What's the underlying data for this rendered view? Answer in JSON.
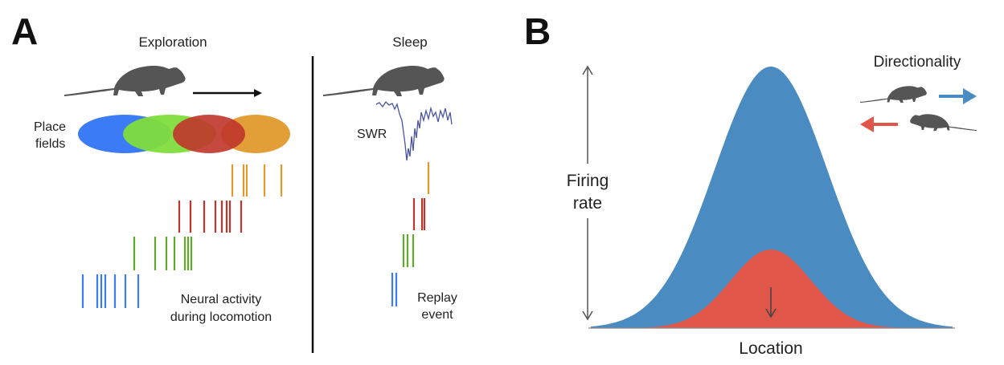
{
  "panel_a": {
    "label": "A",
    "exploration_title": "Exploration",
    "sleep_title": "Sleep",
    "place_fields_label": [
      "Place",
      "fields"
    ],
    "swr_label": "SWR",
    "neural_activity_label": [
      "Neural activity",
      "during locomotion"
    ],
    "replay_label": [
      "Replay",
      "event"
    ],
    "place_field_colors": [
      "#3b7bf5",
      "#7fdd3c",
      "#c0352b",
      "#e09a2d"
    ]
  },
  "panel_b": {
    "label": "B",
    "y_label": [
      "Firing",
      "rate"
    ],
    "x_label": "Location",
    "legend_title": "Directionality",
    "colors": {
      "forward": "#4a8bc2",
      "backward": "#e0574a"
    }
  }
}
